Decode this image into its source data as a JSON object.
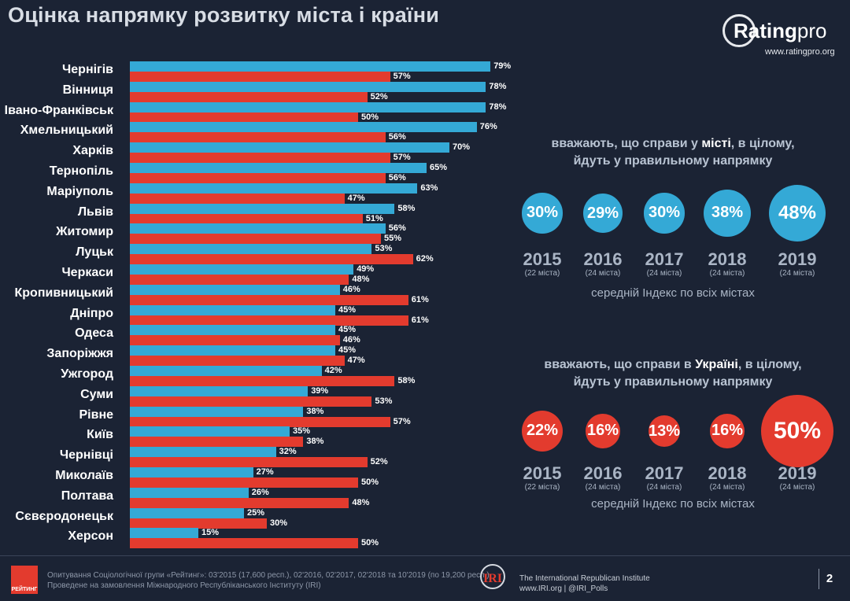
{
  "title": "Оцінка напрямку розвитку міста і країни",
  "logo": {
    "brand": "Rating",
    "brand_suffix": "pro",
    "url": "www.ratingpro.org"
  },
  "colors": {
    "city_bar": "#34a9d6",
    "country_bar": "#e33b2e",
    "background": "#1b2334"
  },
  "chart_data": {
    "type": "bar",
    "orientation": "horizontal",
    "categories": [
      "Чернігів",
      "Вінниця",
      "Івано-Франківськ",
      "Хмельницький",
      "Харків",
      "Тернопіль",
      "Маріуполь",
      "Львів",
      "Житомир",
      "Луцьк",
      "Черкаси",
      "Кропивницький",
      "Дніпро",
      "Одеса",
      "Запоріжжя",
      "Ужгород",
      "Суми",
      "Рівне",
      "Київ",
      "Чернівці",
      "Миколаїв",
      "Полтава",
      "Сєвєродонецьк",
      "Херсон"
    ],
    "series": [
      {
        "color": "#34a9d6",
        "values": [
          79,
          78,
          78,
          76,
          70,
          65,
          63,
          58,
          56,
          53,
          49,
          46,
          45,
          45,
          45,
          42,
          39,
          38,
          35,
          32,
          27,
          26,
          25,
          15
        ]
      },
      {
        "color": "#e33b2e",
        "values": [
          57,
          52,
          50,
          56,
          57,
          56,
          47,
          51,
          55,
          62,
          48,
          61,
          61,
          46,
          47,
          58,
          53,
          57,
          38,
          52,
          50,
          48,
          30,
          50
        ]
      }
    ],
    "value_suffix": "%",
    "xlim": [
      0,
      100
    ]
  },
  "city_panel": {
    "caption_before": "вважають, що справи у ",
    "caption_bold": "місті",
    "caption_after": ", в цілому,",
    "caption_line2": "йдуть у правильному напрямку",
    "items": [
      {
        "value": "30%",
        "year": "2015",
        "cities": "(22 міста)"
      },
      {
        "value": "29%",
        "year": "2016",
        "cities": "(24 міста)"
      },
      {
        "value": "30%",
        "year": "2017",
        "cities": "(24 міста)"
      },
      {
        "value": "38%",
        "year": "2018",
        "cities": "(24 міста)"
      },
      {
        "value": "48%",
        "year": "2019",
        "cities": "(24 міста)"
      }
    ],
    "index_label": "середній Індекс по всіх містах"
  },
  "country_panel": {
    "caption_before": "вважають, що справи в ",
    "caption_bold": "Україні",
    "caption_after": ", в цілому,",
    "caption_line2": "йдуть у правильному напрямку",
    "items": [
      {
        "value": "22%",
        "year": "2015",
        "cities": "(22 міста)"
      },
      {
        "value": "16%",
        "year": "2016",
        "cities": "(24 міста)"
      },
      {
        "value": "13%",
        "year": "2017",
        "cities": "(24 міста)"
      },
      {
        "value": "16%",
        "year": "2018",
        "cities": "(24 міста)"
      },
      {
        "value": "50%",
        "year": "2019",
        "cities": "(24 міста)"
      }
    ],
    "index_label": "середній Індекс по всіх містах"
  },
  "footer": {
    "rating_logo_text": "РЕЙТИНГ",
    "source_line1": "Опитування Соціологічної групи «Рейтинг»: 03'2015 (17,600 респ.), 02'2016, 02'2017, 02'2018 та 10'2019 (по 19,200 респ.).",
    "source_line2": "Проведене на замовлення Міжнародного Республіканського Інституту (IRI)",
    "iri_logo": "IRI",
    "iri_name": "The International Republican Institute",
    "iri_links": "www.IRI.org | @IRI_Polls",
    "page_number": "2"
  }
}
